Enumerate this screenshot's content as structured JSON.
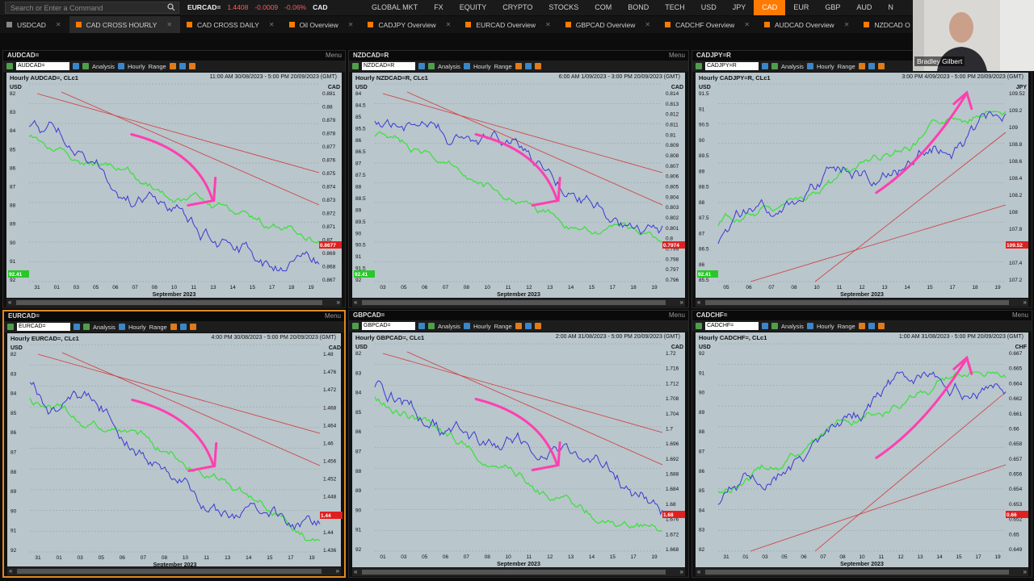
{
  "search": {
    "placeholder": "Search or Enter a Command"
  },
  "ticker": {
    "symbol": "EURCAD=",
    "price": "1.4408",
    "change": "-0.0009",
    "pct": "-0.06%",
    "ccy": "CAD"
  },
  "market_tabs": [
    "GLOBAL MKT",
    "FX",
    "EQUITY",
    "CRYPTO",
    "STOCKS",
    "COM",
    "BOND",
    "TECH",
    "USD",
    "JPY",
    "CAD",
    "EUR",
    "GBP",
    "AUD",
    "N"
  ],
  "active_market_tab": "CAD",
  "workspace_tabs": [
    "USDCAD",
    "CAD CROSS HOURLY",
    "CAD CROSS DAILY",
    "Oil Overview",
    "CADJPY Overview",
    "EURCAD Overview",
    "GBPCAD Overview",
    "CADCHF Overview",
    "AUDCAD Overview",
    "NZDCAD O"
  ],
  "active_workspace_tab": "CAD CROSS HOURLY",
  "webcam": {
    "name": "Bradley Gilbert"
  },
  "toolbar": {
    "analysis": "Analysis",
    "hourly": "Hourly",
    "range": "Range",
    "menu": "Menu"
  },
  "colors": {
    "accent": "#ff7a00",
    "chart_bg": "#b9c6cc",
    "price_line": "#3a3ad0",
    "overlay_line": "#3fe03f",
    "trend": "#d23a3a",
    "arrow": "#ff3fb0"
  },
  "panels": [
    {
      "ric": "AUDCAD=",
      "title": "AUDCAD=",
      "header": "Hourly AUDCAD=, CLc1",
      "range": "11:00 AM 30/08/2023 - 5:00 PM 20/09/2023 (GMT)",
      "right_unit": "CAD",
      "left_unit": "USD",
      "left_ticks": [
        "82",
        "83",
        "84",
        "85",
        "86",
        "87",
        "88",
        "89",
        "90",
        "91",
        "92"
      ],
      "right_ticks": [
        "0.881",
        "0.88",
        "0.879",
        "0.878",
        "0.877",
        "0.876",
        "0.875",
        "0.874",
        "0.873",
        "0.872",
        "0.871",
        "0.87",
        "0.869",
        "0.868",
        "0.867"
      ],
      "x_ticks": [
        "31",
        "01",
        "03",
        "05",
        "06",
        "07",
        "08",
        "10",
        "11",
        "13",
        "14",
        "15",
        "17",
        "18",
        "19"
      ],
      "month": "September 2023",
      "last": "0.8677",
      "left_last": "92.41",
      "arrow": "down"
    },
    {
      "ric": "NZDCAD=R",
      "title": "NZDCAD=R",
      "header": "Hourly NZDCAD=R, CLc1",
      "range": "6:00 AM 1/09/2023 - 3:00 PM 20/09/2023 (GMT)",
      "right_unit": "CAD",
      "left_unit": "USD",
      "left_ticks": [
        "84",
        "84.5",
        "85",
        "85.5",
        "86",
        "86.5",
        "87",
        "87.5",
        "88",
        "88.5",
        "89",
        "89.5",
        "90",
        "90.5",
        "91",
        "91.5",
        "92"
      ],
      "right_ticks": [
        "0.814",
        "0.813",
        "0.812",
        "0.811",
        "0.81",
        "0.809",
        "0.808",
        "0.807",
        "0.806",
        "0.805",
        "0.804",
        "0.803",
        "0.802",
        "0.801",
        "0.8",
        "0.799",
        "0.798",
        "0.797",
        "0.796"
      ],
      "x_ticks": [
        "03",
        "05",
        "06",
        "07",
        "08",
        "10",
        "11",
        "12",
        "13",
        "14",
        "15",
        "17",
        "18",
        "19"
      ],
      "month": "September 2023",
      "last": "0.7974",
      "left_last": "92.41",
      "arrow": "down"
    },
    {
      "ric": "CADJPY=R",
      "title": "CADJPY=R",
      "header": "Hourly CADJPY=R, CLc1",
      "range": "3:00 PM 4/09/2023 - 5:00 PM 20/09/2023 (GMT)",
      "right_unit": "JPY",
      "left_unit": "USD",
      "left_ticks": [
        "91.5",
        "91",
        "90.5",
        "90",
        "89.5",
        "89",
        "88.5",
        "88",
        "87.5",
        "87",
        "86.5",
        "86",
        "85.5"
      ],
      "right_ticks": [
        "109.52",
        "109.2",
        "109",
        "108.8",
        "108.6",
        "108.4",
        "108.2",
        "108",
        "107.8",
        "107.6",
        "107.4",
        "107.2"
      ],
      "x_ticks": [
        "05",
        "06",
        "07",
        "08",
        "10",
        "11",
        "12",
        "13",
        "14",
        "15",
        "17",
        "18",
        "19"
      ],
      "month": "September 2023",
      "last": "109.52",
      "left_last": "92.41",
      "arrow": "up"
    },
    {
      "ric": "EURCAD=",
      "title": "EURCAD=",
      "header": "Hourly EURCAD=, CLc1",
      "range": "4:00 PM 30/08/2023 - 5:00 PM 20/09/2023 (GMT)",
      "right_unit": "CAD",
      "left_unit": "USD",
      "left_ticks": [
        "82",
        "83",
        "84",
        "85",
        "86",
        "87",
        "88",
        "89",
        "90",
        "91",
        "92"
      ],
      "right_ticks": [
        "1.48",
        "1.476",
        "1.472",
        "1.468",
        "1.464",
        "1.46",
        "1.456",
        "1.452",
        "1.448",
        "1.444",
        "1.44",
        "1.436"
      ],
      "x_ticks": [
        "31",
        "01",
        "03",
        "05",
        "06",
        "07",
        "08",
        "10",
        "11",
        "13",
        "14",
        "15",
        "17",
        "19"
      ],
      "month": "September 2023",
      "last": "1.44",
      "left_last": "",
      "arrow": "down"
    },
    {
      "ric": "GBPCAD=",
      "title": "GBPCAD=",
      "header": "Hourly GBPCAD=, CLc1",
      "range": "2:00 AM 31/08/2023 - 5:00 PM 20/09/2023 (GMT)",
      "right_unit": "CAD",
      "left_unit": "USD",
      "left_ticks": [
        "82",
        "83",
        "84",
        "85",
        "86",
        "87",
        "88",
        "89",
        "90",
        "91",
        "92"
      ],
      "right_ticks": [
        "1.72",
        "1.716",
        "1.712",
        "1.708",
        "1.704",
        "1.7",
        "1.696",
        "1.692",
        "1.688",
        "1.684",
        "1.68",
        "1.676",
        "1.672",
        "1.668"
      ],
      "x_ticks": [
        "01",
        "03",
        "05",
        "06",
        "07",
        "08",
        "10",
        "11",
        "12",
        "13",
        "14",
        "15",
        "17",
        "19"
      ],
      "month": "September 2023",
      "last": "1.68",
      "left_last": "",
      "arrow": "down"
    },
    {
      "ric": "CADCHF=",
      "title": "CADCHF=",
      "header": "Hourly CADCHF=, CLc1",
      "range": "1:00 AM 31/08/2023 - 5:00 PM 20/09/2023 (GMT)",
      "right_unit": "CHF",
      "left_unit": "USD",
      "left_ticks": [
        "92",
        "91",
        "90",
        "89",
        "88",
        "87",
        "86",
        "85",
        "84",
        "83",
        "82"
      ],
      "right_ticks": [
        "0.667",
        "0.665",
        "0.664",
        "0.662",
        "0.661",
        "0.66",
        "0.658",
        "0.657",
        "0.656",
        "0.654",
        "0.653",
        "0.652",
        "0.65",
        "0.649"
      ],
      "x_ticks": [
        "31",
        "01",
        "03",
        "05",
        "06",
        "07",
        "08",
        "10",
        "11",
        "12",
        "13",
        "14",
        "15",
        "17",
        "19"
      ],
      "month": "September 2023",
      "last": "0.66",
      "left_last": "",
      "arrow": "up"
    }
  ]
}
